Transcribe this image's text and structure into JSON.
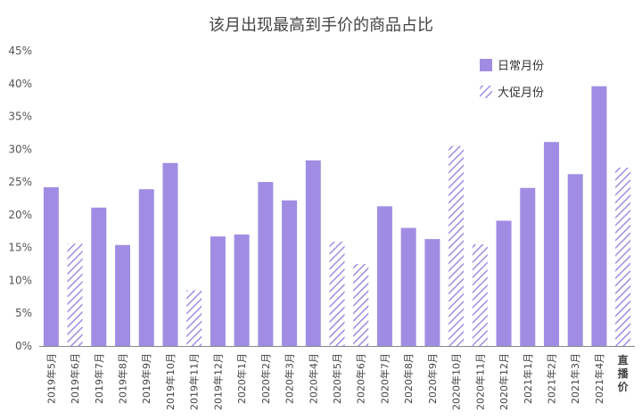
{
  "chart_data": {
    "type": "bar",
    "title": "该月出现最高到手价的商品占比",
    "categories": [
      "2019年5月",
      "2019年6月",
      "2019年7月",
      "2019年8月",
      "2019年9月",
      "2019年10月",
      "2019年11月",
      "2019年12月",
      "2020年1月",
      "2020年2月",
      "2020年3月",
      "2020年4月",
      "2020年5月",
      "2020年6月",
      "2020年7月",
      "2020年8月",
      "2020年9月",
      "2020年10月",
      "2020年11月",
      "2020年12月",
      "2021年1月",
      "2021年2月",
      "2021年3月",
      "2021年4月",
      "直播价"
    ],
    "values": [
      24.2,
      15.6,
      21.1,
      15.4,
      23.9,
      27.9,
      8.5,
      16.7,
      17.0,
      25.0,
      22.2,
      28.3,
      15.9,
      12.5,
      21.3,
      18.0,
      16.3,
      30.5,
      15.5,
      19.1,
      24.1,
      31.1,
      26.2,
      39.6,
      27.2
    ],
    "bar_kind": [
      "regular",
      "promo",
      "regular",
      "regular",
      "regular",
      "regular",
      "promo",
      "regular",
      "regular",
      "regular",
      "regular",
      "regular",
      "promo",
      "promo",
      "regular",
      "regular",
      "regular",
      "promo",
      "promo",
      "regular",
      "regular",
      "regular",
      "regular",
      "regular",
      "promo"
    ],
    "series": [
      {
        "name": "日常月份",
        "style": "solid"
      },
      {
        "name": "大促月份",
        "style": "hatched"
      }
    ],
    "ylim": [
      0,
      45
    ],
    "yticks": [
      "0%",
      "5%",
      "10%",
      "15%",
      "20%",
      "25%",
      "30%",
      "35%",
      "40%",
      "45%"
    ],
    "grid": false,
    "legend_position": "top-right",
    "colors": {
      "solid": "#a08de3",
      "hatch": "#a08de3",
      "axis": "#888888"
    }
  }
}
